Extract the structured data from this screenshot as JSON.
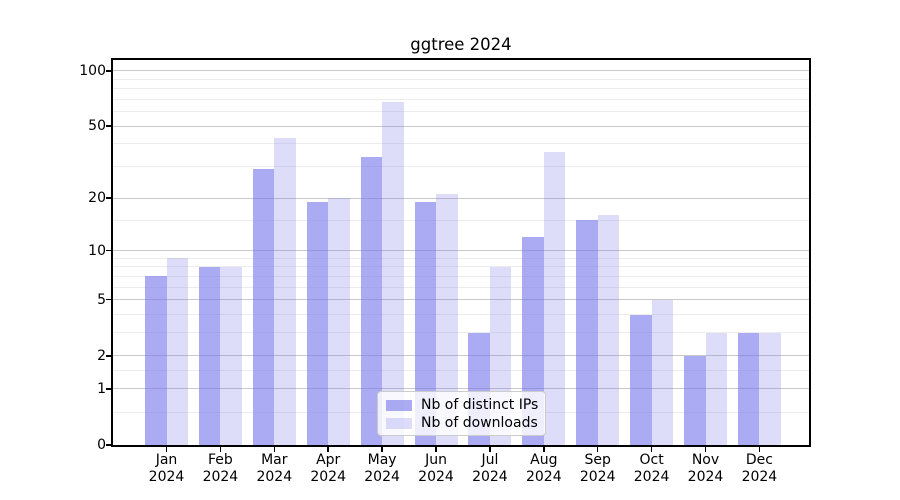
{
  "chart_data": {
    "type": "bar",
    "title": "ggtree 2024",
    "year": "2024",
    "categories": [
      "Jan",
      "Feb",
      "Mar",
      "Apr",
      "May",
      "Jun",
      "Jul",
      "Aug",
      "Sep",
      "Oct",
      "Nov",
      "Dec"
    ],
    "series": [
      {
        "name": "Nb of distinct IPs",
        "color": "rgba(120,120,235,0.62)",
        "values": [
          7,
          8,
          29,
          19,
          34,
          19,
          3,
          12,
          15,
          4,
          2,
          3
        ]
      },
      {
        "name": "Nb of downloads",
        "color": "rgba(120,120,235,0.25)",
        "values": [
          9,
          8,
          43,
          20,
          68,
          21,
          8,
          36,
          16,
          5,
          3,
          3
        ]
      }
    ],
    "yscale": "log1p",
    "ylim": [
      0,
      114
    ],
    "yticks": [
      0,
      1,
      2,
      5,
      10,
      20,
      50,
      100
    ],
    "yticks_minor": [
      0.5,
      1.5,
      3,
      4,
      6,
      7,
      8,
      9,
      15,
      30,
      40,
      60,
      70,
      80,
      90
    ],
    "grid": {
      "major_color": "#c9c9c9",
      "minor_color": "#ececec",
      "visible": true
    },
    "legend_position": "lower center",
    "axis_color": "#000000",
    "background_color": "#ffffff"
  }
}
